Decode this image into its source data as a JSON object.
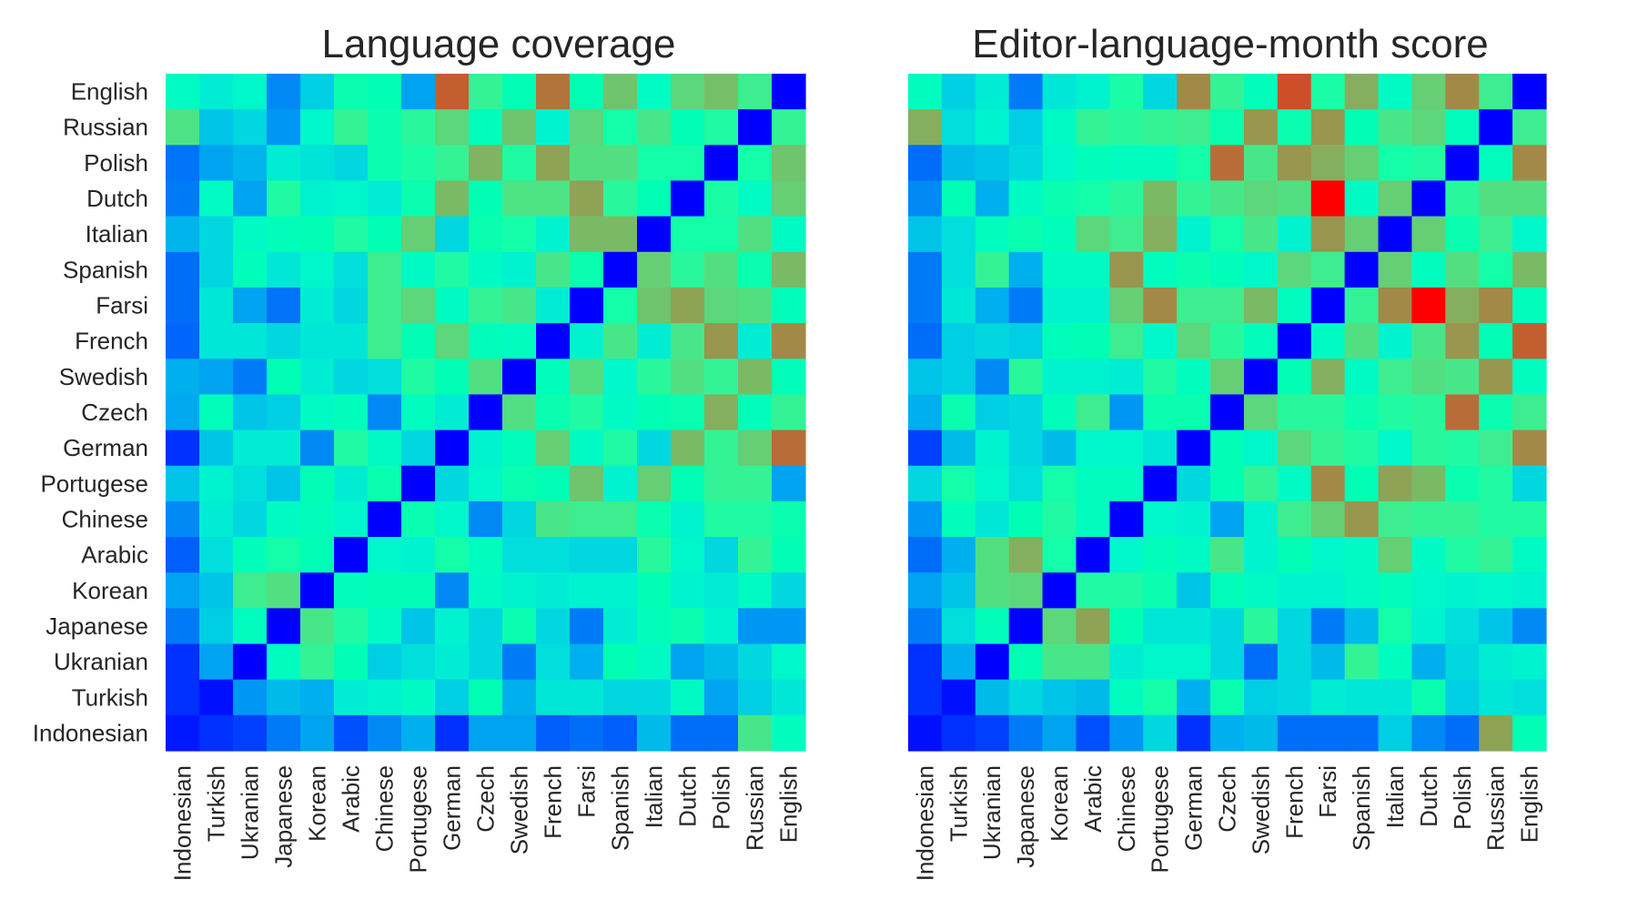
{
  "chart_data": [
    {
      "type": "heatmap",
      "title": "Language coverage",
      "row_labels": [
        "English",
        "Russian",
        "Polish",
        "Dutch",
        "Italian",
        "Spanish",
        "Farsi",
        "French",
        "Swedish",
        "Czech",
        "German",
        "Portugese",
        "Chinese",
        "Arabic",
        "Korean",
        "Japanese",
        "Ukranian",
        "Turkish",
        "Indonesian"
      ],
      "col_labels": [
        "Indonesian",
        "Turkish",
        "Ukranian",
        "Japanese",
        "Korean",
        "Arabic",
        "Chinese",
        "Portugese",
        "German",
        "Czech",
        "Swedish",
        "French",
        "Farsi",
        "Spanish",
        "Italian",
        "Dutch",
        "Polish",
        "Russian",
        "English"
      ],
      "colormap": "rainbow",
      "colorbar": false,
      "grid": false,
      "values": [
        [
          0.45,
          0.38,
          0.42,
          0.18,
          0.3,
          0.52,
          0.5,
          0.22,
          0.88,
          0.6,
          0.5,
          0.85,
          0.5,
          0.72,
          0.45,
          0.68,
          0.73,
          0.62,
          0.0
        ],
        [
          0.65,
          0.28,
          0.32,
          0.2,
          0.42,
          0.6,
          0.52,
          0.58,
          0.68,
          0.48,
          0.72,
          0.4,
          0.68,
          0.54,
          0.64,
          0.5,
          0.56,
          0.0,
          0.6
        ],
        [
          0.15,
          0.22,
          0.25,
          0.38,
          0.35,
          0.32,
          0.52,
          0.55,
          0.6,
          0.75,
          0.56,
          0.78,
          0.66,
          0.66,
          0.54,
          0.54,
          0.0,
          0.54,
          0.72
        ],
        [
          0.16,
          0.45,
          0.22,
          0.56,
          0.4,
          0.42,
          0.38,
          0.52,
          0.74,
          0.5,
          0.65,
          0.65,
          0.78,
          0.58,
          0.5,
          0.0,
          0.55,
          0.45,
          0.7
        ],
        [
          0.25,
          0.32,
          0.44,
          0.48,
          0.5,
          0.56,
          0.5,
          0.7,
          0.32,
          0.52,
          0.54,
          0.4,
          0.74,
          0.74,
          0.0,
          0.54,
          0.54,
          0.66,
          0.44
        ],
        [
          0.14,
          0.32,
          0.48,
          0.36,
          0.42,
          0.34,
          0.62,
          0.44,
          0.56,
          0.44,
          0.4,
          0.64,
          0.52,
          0.0,
          0.7,
          0.58,
          0.66,
          0.52,
          0.74
        ],
        [
          0.14,
          0.36,
          0.22,
          0.15,
          0.38,
          0.32,
          0.62,
          0.68,
          0.44,
          0.6,
          0.64,
          0.38,
          0.0,
          0.54,
          0.72,
          0.78,
          0.68,
          0.66,
          0.48
        ],
        [
          0.13,
          0.36,
          0.36,
          0.32,
          0.36,
          0.36,
          0.62,
          0.5,
          0.68,
          0.48,
          0.46,
          0.0,
          0.4,
          0.64,
          0.38,
          0.64,
          0.8,
          0.38,
          0.82
        ],
        [
          0.24,
          0.22,
          0.16,
          0.5,
          0.38,
          0.32,
          0.34,
          0.56,
          0.5,
          0.66,
          0.0,
          0.48,
          0.66,
          0.42,
          0.58,
          0.66,
          0.6,
          0.74,
          0.48
        ],
        [
          0.23,
          0.48,
          0.28,
          0.3,
          0.44,
          0.48,
          0.18,
          0.46,
          0.38,
          0.0,
          0.66,
          0.52,
          0.56,
          0.44,
          0.5,
          0.52,
          0.76,
          0.48,
          0.6
        ],
        [
          0.06,
          0.28,
          0.38,
          0.38,
          0.18,
          0.56,
          0.44,
          0.32,
          0.0,
          0.4,
          0.48,
          0.7,
          0.44,
          0.56,
          0.32,
          0.74,
          0.6,
          0.7,
          0.86
        ],
        [
          0.28,
          0.4,
          0.34,
          0.28,
          0.5,
          0.38,
          0.52,
          0.0,
          0.32,
          0.42,
          0.52,
          0.5,
          0.72,
          0.4,
          0.7,
          0.5,
          0.6,
          0.6,
          0.22
        ],
        [
          0.18,
          0.38,
          0.32,
          0.44,
          0.48,
          0.42,
          0.0,
          0.52,
          0.42,
          0.18,
          0.32,
          0.64,
          0.62,
          0.62,
          0.52,
          0.4,
          0.56,
          0.56,
          0.52
        ],
        [
          0.12,
          0.34,
          0.48,
          0.54,
          0.5,
          0.0,
          0.42,
          0.4,
          0.54,
          0.46,
          0.34,
          0.34,
          0.32,
          0.32,
          0.58,
          0.42,
          0.32,
          0.6,
          0.5
        ],
        [
          0.22,
          0.28,
          0.62,
          0.66,
          0.0,
          0.48,
          0.5,
          0.5,
          0.18,
          0.44,
          0.4,
          0.38,
          0.4,
          0.4,
          0.5,
          0.4,
          0.38,
          0.44,
          0.32
        ],
        [
          0.16,
          0.3,
          0.46,
          0.0,
          0.64,
          0.56,
          0.44,
          0.28,
          0.4,
          0.32,
          0.52,
          0.32,
          0.16,
          0.38,
          0.48,
          0.52,
          0.4,
          0.2,
          0.2
        ],
        [
          0.06,
          0.22,
          0.0,
          0.46,
          0.6,
          0.5,
          0.3,
          0.34,
          0.38,
          0.32,
          0.16,
          0.34,
          0.24,
          0.5,
          0.44,
          0.22,
          0.26,
          0.32,
          0.42
        ],
        [
          0.06,
          0.02,
          0.2,
          0.26,
          0.24,
          0.38,
          0.4,
          0.44,
          0.3,
          0.5,
          0.24,
          0.36,
          0.36,
          0.32,
          0.32,
          0.44,
          0.22,
          0.3,
          0.36
        ],
        [
          0.03,
          0.06,
          0.08,
          0.16,
          0.22,
          0.1,
          0.18,
          0.24,
          0.06,
          0.22,
          0.22,
          0.12,
          0.14,
          0.12,
          0.26,
          0.14,
          0.14,
          0.64,
          0.46
        ]
      ]
    },
    {
      "type": "heatmap",
      "title": "Editor-language-month score",
      "row_labels": [
        "English",
        "Russian",
        "Polish",
        "Dutch",
        "Italian",
        "Spanish",
        "Farsi",
        "French",
        "Swedish",
        "Czech",
        "German",
        "Portugese",
        "Chinese",
        "Arabic",
        "Korean",
        "Japanese",
        "Ukranian",
        "Turkish",
        "Indonesian"
      ],
      "col_labels": [
        "Indonesian",
        "Turkish",
        "Ukranian",
        "Japanese",
        "Korean",
        "Arabic",
        "Chinese",
        "Portugese",
        "German",
        "Czech",
        "Swedish",
        "French",
        "Farsi",
        "Spanish",
        "Italian",
        "Dutch",
        "Polish",
        "Russian",
        "English"
      ],
      "colormap": "rainbow",
      "colorbar": false,
      "grid": false,
      "values": [
        [
          0.46,
          0.3,
          0.38,
          0.16,
          0.36,
          0.4,
          0.55,
          0.32,
          0.82,
          0.6,
          0.48,
          0.9,
          0.55,
          0.76,
          0.44,
          0.7,
          0.82,
          0.62,
          0.0
        ],
        [
          0.76,
          0.34,
          0.4,
          0.3,
          0.44,
          0.6,
          0.58,
          0.6,
          0.62,
          0.52,
          0.8,
          0.52,
          0.8,
          0.5,
          0.64,
          0.68,
          0.48,
          0.0,
          0.62
        ],
        [
          0.14,
          0.26,
          0.28,
          0.32,
          0.42,
          0.48,
          0.46,
          0.46,
          0.54,
          0.86,
          0.64,
          0.8,
          0.76,
          0.7,
          0.54,
          0.56,
          0.0,
          0.46,
          0.82
        ],
        [
          0.18,
          0.5,
          0.24,
          0.44,
          0.52,
          0.54,
          0.58,
          0.74,
          0.6,
          0.64,
          0.68,
          0.66,
          1.0,
          0.44,
          0.7,
          0.0,
          0.58,
          0.66,
          0.66
        ],
        [
          0.28,
          0.34,
          0.46,
          0.52,
          0.48,
          0.68,
          0.62,
          0.76,
          0.4,
          0.54,
          0.64,
          0.4,
          0.8,
          0.7,
          0.0,
          0.7,
          0.52,
          0.62,
          0.42
        ],
        [
          0.16,
          0.34,
          0.6,
          0.24,
          0.44,
          0.44,
          0.8,
          0.46,
          0.52,
          0.48,
          0.42,
          0.68,
          0.62,
          0.0,
          0.7,
          0.46,
          0.66,
          0.54,
          0.74
        ],
        [
          0.16,
          0.36,
          0.24,
          0.16,
          0.4,
          0.4,
          0.7,
          0.82,
          0.62,
          0.62,
          0.74,
          0.46,
          0.0,
          0.6,
          0.82,
          1.0,
          0.76,
          0.82,
          0.48
        ],
        [
          0.14,
          0.3,
          0.32,
          0.3,
          0.48,
          0.5,
          0.62,
          0.42,
          0.68,
          0.58,
          0.48,
          0.0,
          0.44,
          0.66,
          0.4,
          0.64,
          0.8,
          0.5,
          0.88
        ],
        [
          0.28,
          0.3,
          0.18,
          0.58,
          0.4,
          0.4,
          0.38,
          0.56,
          0.46,
          0.7,
          0.0,
          0.5,
          0.76,
          0.44,
          0.62,
          0.66,
          0.64,
          0.8,
          0.46
        ],
        [
          0.24,
          0.52,
          0.3,
          0.32,
          0.48,
          0.62,
          0.2,
          0.52,
          0.52,
          0.0,
          0.68,
          0.58,
          0.58,
          0.52,
          0.56,
          0.58,
          0.86,
          0.52,
          0.62
        ],
        [
          0.08,
          0.26,
          0.4,
          0.32,
          0.26,
          0.42,
          0.42,
          0.36,
          0.0,
          0.5,
          0.42,
          0.68,
          0.6,
          0.56,
          0.42,
          0.58,
          0.56,
          0.62,
          0.82
        ],
        [
          0.32,
          0.54,
          0.42,
          0.34,
          0.54,
          0.46,
          0.46,
          0.0,
          0.32,
          0.5,
          0.6,
          0.44,
          0.82,
          0.5,
          0.78,
          0.74,
          0.52,
          0.56,
          0.32
        ],
        [
          0.2,
          0.48,
          0.36,
          0.5,
          0.56,
          0.46,
          0.0,
          0.42,
          0.4,
          0.22,
          0.4,
          0.62,
          0.7,
          0.8,
          0.62,
          0.6,
          0.6,
          0.56,
          0.56
        ],
        [
          0.14,
          0.24,
          0.66,
          0.76,
          0.54,
          0.0,
          0.42,
          0.48,
          0.44,
          0.64,
          0.4,
          0.5,
          0.42,
          0.44,
          0.7,
          0.44,
          0.56,
          0.6,
          0.44
        ],
        [
          0.22,
          0.28,
          0.66,
          0.68,
          0.0,
          0.56,
          0.56,
          0.52,
          0.28,
          0.48,
          0.44,
          0.4,
          0.4,
          0.44,
          0.48,
          0.42,
          0.4,
          0.42,
          0.4
        ],
        [
          0.16,
          0.34,
          0.48,
          0.0,
          0.68,
          0.78,
          0.5,
          0.36,
          0.36,
          0.32,
          0.58,
          0.32,
          0.16,
          0.26,
          0.54,
          0.4,
          0.34,
          0.28,
          0.18
        ],
        [
          0.06,
          0.24,
          0.0,
          0.5,
          0.64,
          0.64,
          0.38,
          0.42,
          0.42,
          0.32,
          0.14,
          0.32,
          0.26,
          0.6,
          0.46,
          0.24,
          0.32,
          0.38,
          0.4
        ],
        [
          0.06,
          0.02,
          0.26,
          0.32,
          0.28,
          0.26,
          0.46,
          0.54,
          0.24,
          0.52,
          0.3,
          0.32,
          0.38,
          0.36,
          0.36,
          0.52,
          0.3,
          0.36,
          0.34
        ],
        [
          0.02,
          0.06,
          0.08,
          0.16,
          0.22,
          0.1,
          0.2,
          0.32,
          0.06,
          0.24,
          0.26,
          0.14,
          0.14,
          0.14,
          0.3,
          0.18,
          0.14,
          0.78,
          0.5
        ]
      ]
    }
  ]
}
